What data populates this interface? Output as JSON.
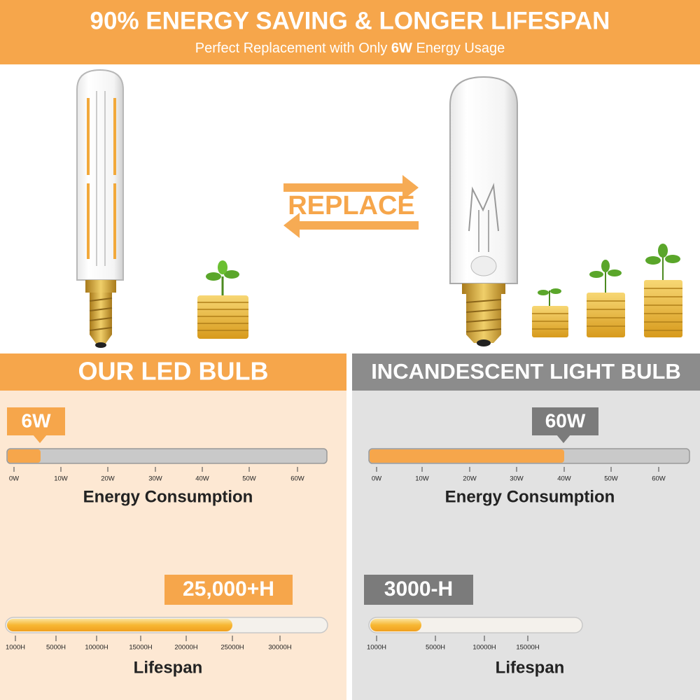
{
  "header": {
    "title": "90% ENERGY SAVING & LONGER LIFESPAN",
    "subtitle": [
      "Perfect Replacement with Only ",
      "6W",
      " Energy Usage"
    ]
  },
  "replace_label": "REPLACE",
  "panels": [
    {
      "title": "OUR LED BULB",
      "energy": {
        "badge": "6W",
        "ticks": [
          "0W",
          "10W",
          "20W",
          "30W",
          "40W",
          "50W",
          "60W"
        ],
        "label": "Energy Consumption"
      },
      "lifespan": {
        "badge": "25,000+H",
        "ticks": [
          "1000H",
          "5000H",
          "10000H",
          "15000H",
          "20000H",
          "25000H",
          "30000H"
        ],
        "label": "Lifespan"
      }
    },
    {
      "title": "INCANDESCENT LIGHT BULB",
      "energy": {
        "badge": "60W",
        "ticks": [
          "0W",
          "10W",
          "20W",
          "30W",
          "40W",
          "50W",
          "60W"
        ],
        "label": "Energy Consumption"
      },
      "lifespan": {
        "badge": "3000-H",
        "ticks": [
          "1000H",
          "5000H",
          "10000H",
          "15000H"
        ],
        "label": "Lifespan"
      }
    }
  ]
}
